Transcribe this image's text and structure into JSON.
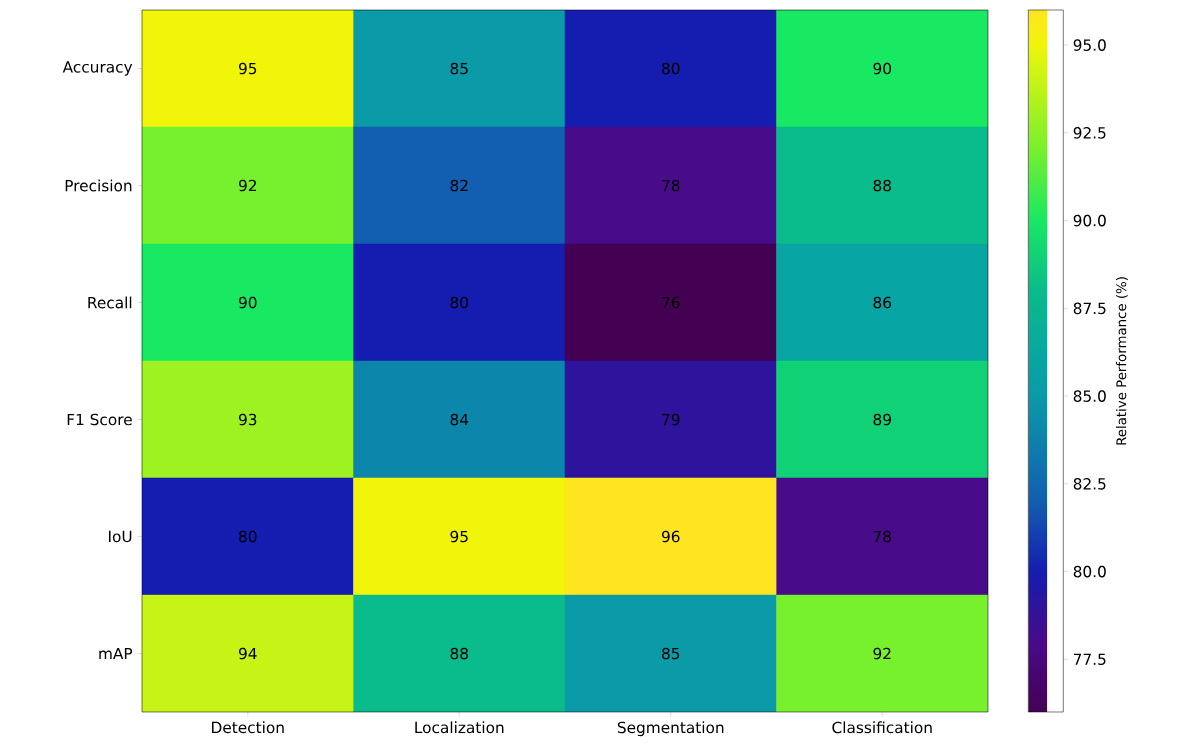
{
  "chart_data": {
    "type": "heatmap",
    "categories": [
      "Detection",
      "Localization",
      "Segmentation",
      "Classification"
    ],
    "y_categories": [
      "Accuracy",
      "Precision",
      "Recall",
      "F1 Score",
      "IoU",
      "mAP"
    ],
    "cells": [
      [
        95,
        85,
        80,
        90
      ],
      [
        92,
        82,
        78,
        88
      ],
      [
        90,
        80,
        76,
        86
      ],
      [
        93,
        84,
        79,
        89
      ],
      [
        80,
        95,
        96,
        78
      ],
      [
        94,
        88,
        85,
        92
      ]
    ],
    "data_labels": true,
    "clabel": "Relative Performance (%)",
    "clim": [
      76,
      96
    ],
    "cticks": [
      {
        "value": 77.5,
        "label": "77.5"
      },
      {
        "value": 80,
        "label": "80.0"
      },
      {
        "value": 82.5,
        "label": "82.5"
      },
      {
        "value": 85,
        "label": "85.0"
      },
      {
        "value": 87.5,
        "label": "87.5"
      },
      {
        "value": 90,
        "label": "90.0"
      },
      {
        "value": 92.5,
        "label": "92.5"
      },
      {
        "value": 95,
        "label": "95.0"
      }
    ]
  }
}
